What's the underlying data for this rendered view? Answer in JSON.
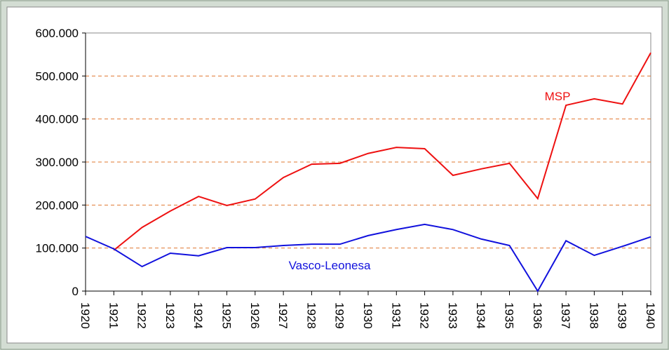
{
  "chart_data": {
    "type": "line",
    "categories": [
      "1920",
      "1921",
      "1922",
      "1923",
      "1924",
      "1925",
      "1926",
      "1927",
      "1928",
      "1929",
      "1930",
      "1931",
      "1932",
      "1933",
      "1934",
      "1935",
      "1936",
      "1937",
      "1938",
      "1939",
      "1940"
    ],
    "series": [
      {
        "name": "MSP",
        "color": "#ee1111",
        "values": [
          null,
          95000,
          148000,
          186000,
          220000,
          199000,
          214000,
          264000,
          295000,
          297000,
          320000,
          334000,
          331000,
          269000,
          284000,
          297000,
          215000,
          432000,
          447000,
          435000,
          554000
        ]
      },
      {
        "name": "Vasco-Leonesa",
        "color": "#1111dd",
        "values": [
          127000,
          98000,
          57000,
          88000,
          82000,
          101000,
          101000,
          106000,
          109000,
          109000,
          129000,
          143000,
          155000,
          143000,
          121000,
          106000,
          0,
          117000,
          83000,
          104000,
          126000
        ]
      }
    ],
    "ylim": [
      0,
      600000
    ],
    "yticks": [
      0,
      {
        "value": 100000,
        "label": "100.000"
      },
      {
        "value": 200000,
        "label": "200.000"
      },
      {
        "value": 300000,
        "label": "300.000"
      },
      {
        "value": 400000,
        "label": "400.000"
      },
      {
        "value": 500000,
        "label": "500.000"
      },
      {
        "value": 600000,
        "label": "600.000"
      }
    ],
    "grid": true
  }
}
